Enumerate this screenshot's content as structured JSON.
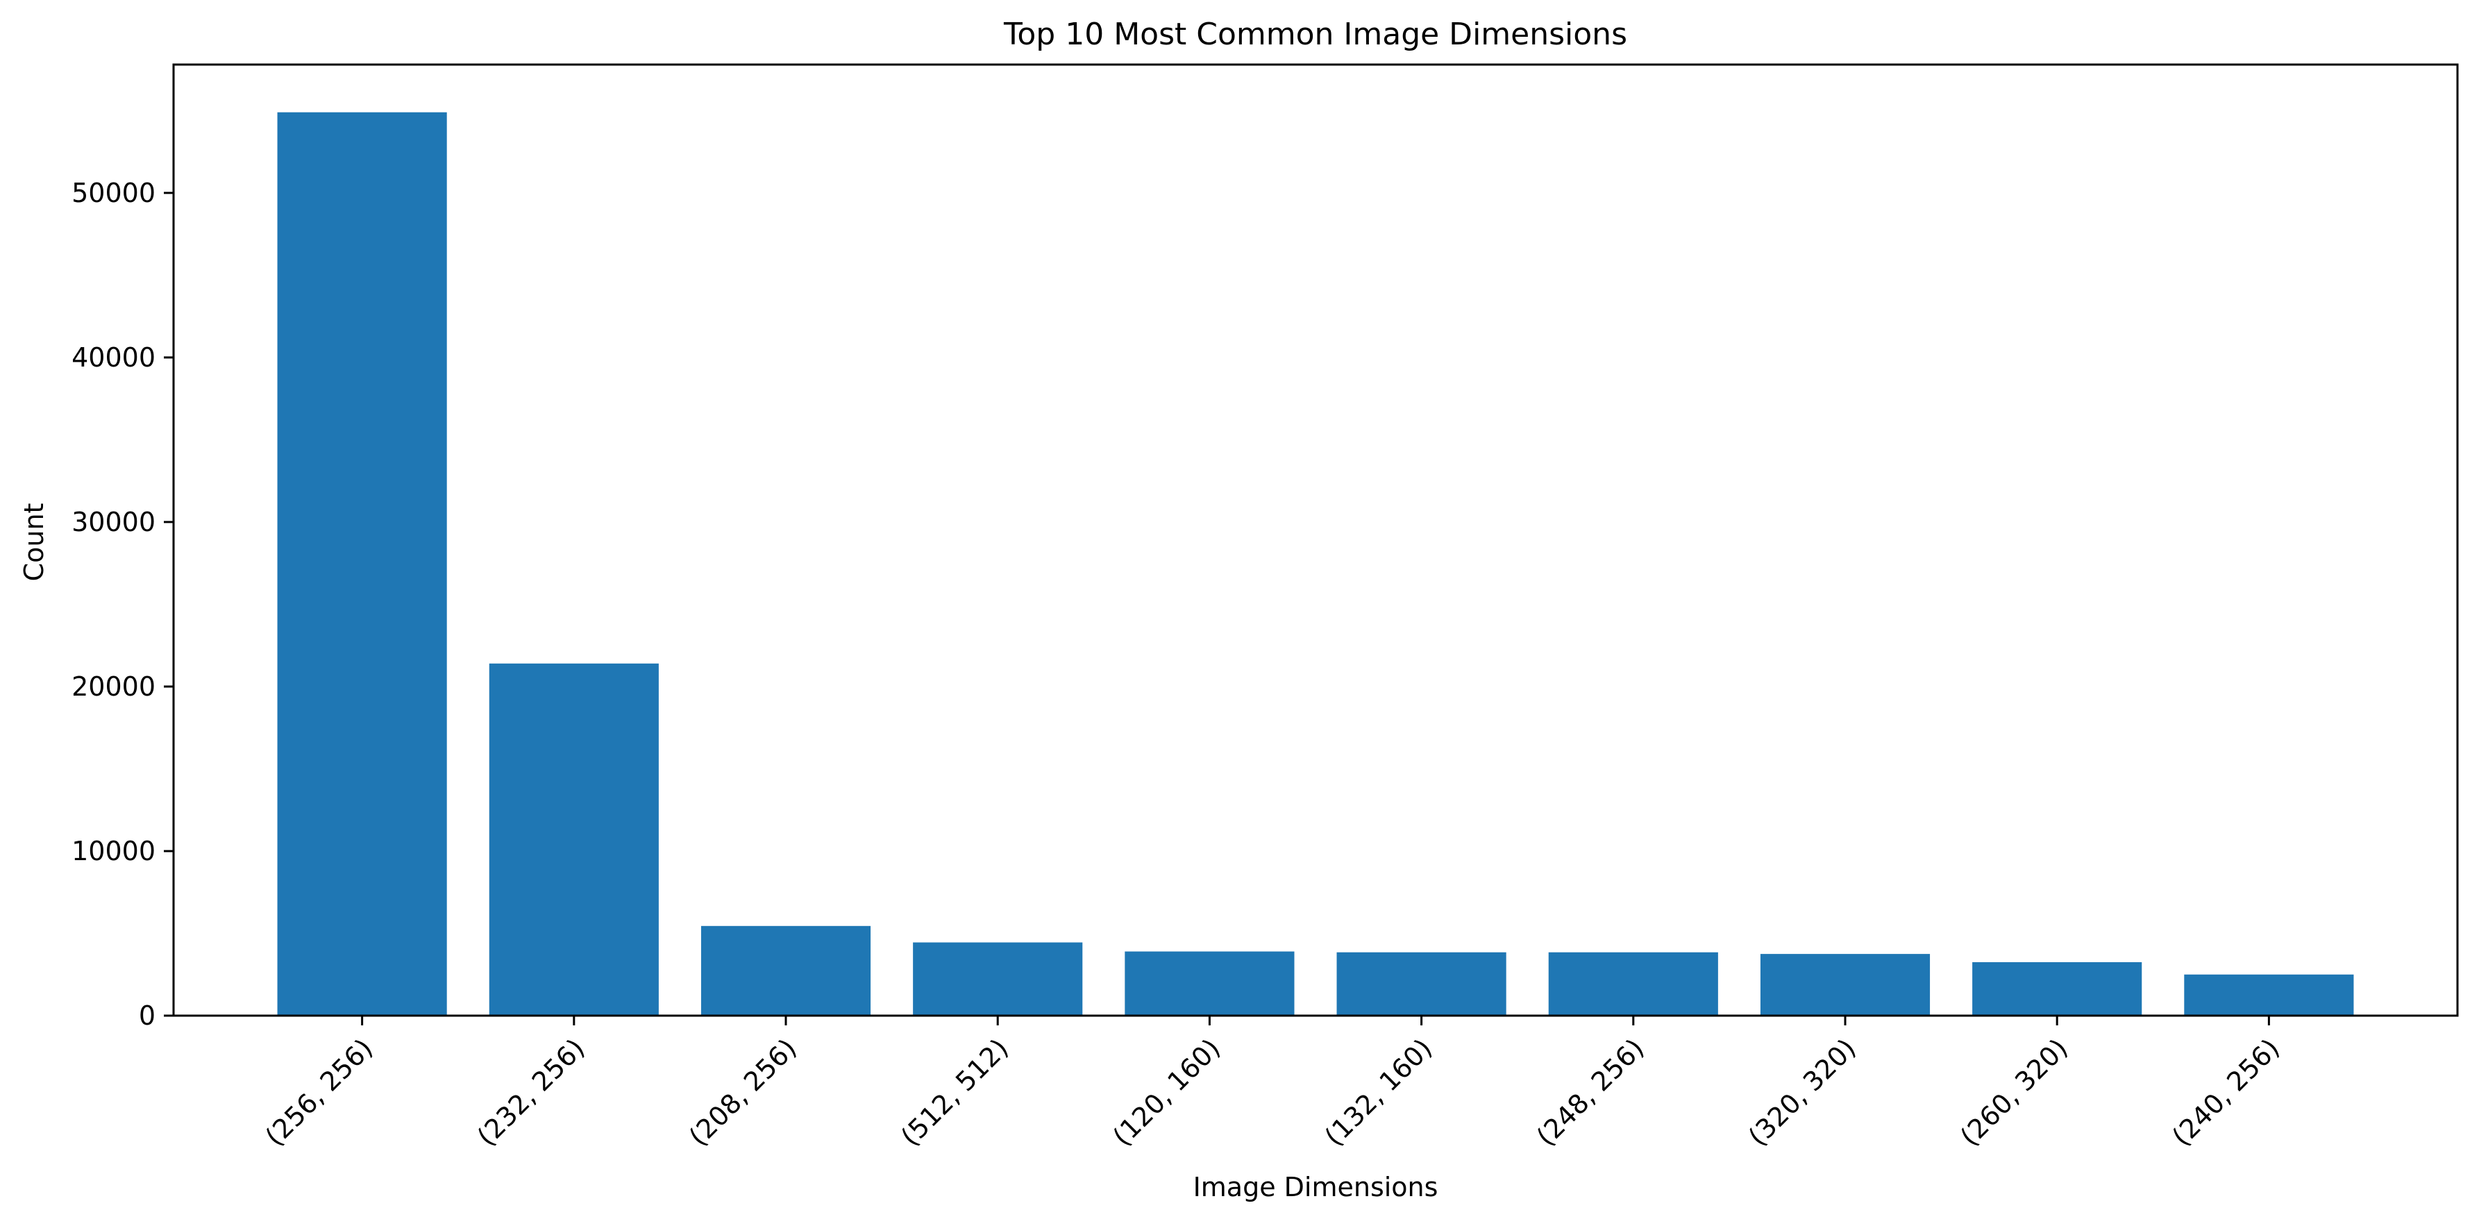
{
  "chart_data": {
    "type": "bar",
    "title": "Top 10 Most Common Image Dimensions",
    "xlabel": "Image Dimensions",
    "ylabel": "Count",
    "categories": [
      "(256, 256)",
      "(232, 256)",
      "(208, 256)",
      "(512, 512)",
      "(120, 160)",
      "(132, 160)",
      "(248, 256)",
      "(320, 320)",
      "(260, 320)",
      "(240, 256)"
    ],
    "values": [
      54900,
      21400,
      5450,
      4450,
      3900,
      3850,
      3850,
      3750,
      3250,
      2500
    ],
    "ylim": [
      0,
      57800
    ],
    "yticks": [
      0,
      10000,
      20000,
      30000,
      40000,
      50000
    ],
    "ytick_labels": [
      "0",
      "10000",
      "20000",
      "30000",
      "40000",
      "50000"
    ],
    "grid": false,
    "bar_color": "#1f77b4"
  }
}
